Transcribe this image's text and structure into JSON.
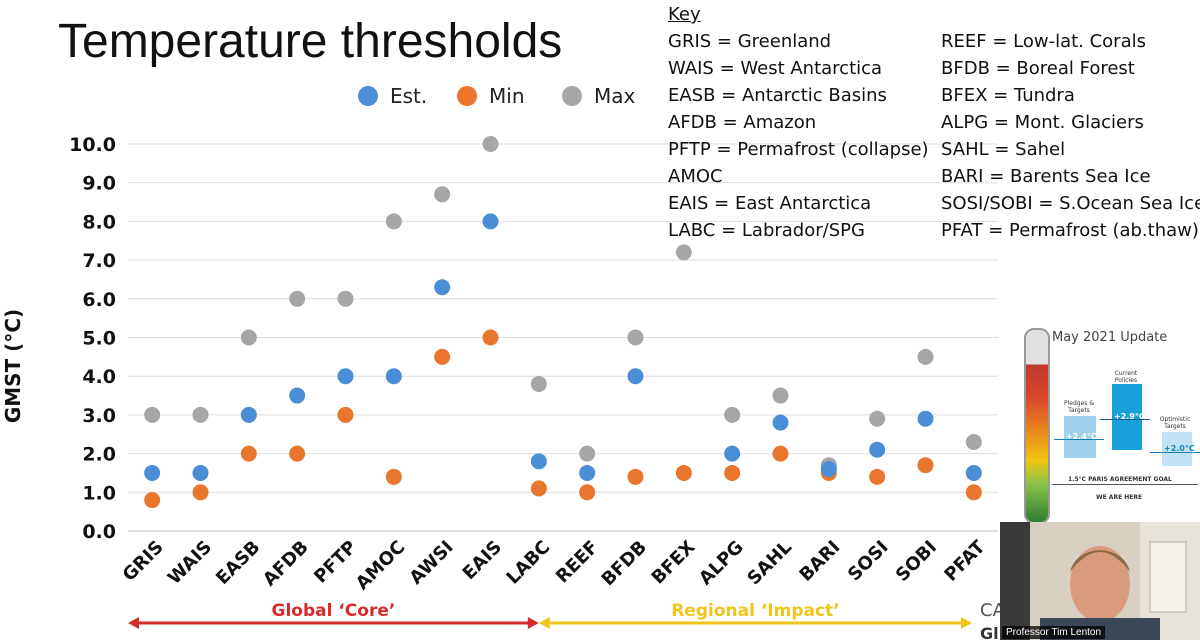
{
  "slide": {
    "title": "Temperature thresholds"
  },
  "key": {
    "heading": "Key",
    "col1": [
      "GRIS = Greenland",
      "WAIS = West Antarctica",
      "EASB = Antarctic Basins",
      "AFDB = Amazon",
      "PFTP = Permafrost (collapse)",
      "AMOC",
      "EAIS = East Antarctica",
      "LABC = Labrador/SPG"
    ],
    "col2": [
      "REEF = Low-lat. Corals",
      "BFDB = Boreal Forest",
      "BFEX = Tundra",
      "ALPG = Mont. Glaciers",
      "SAHL = Sahel",
      "BARI = Barents Sea Ice",
      "SOSI/SOBI = S.Ocean Sea Ice",
      "PFAT = Permafrost (ab.thaw)"
    ]
  },
  "chart_data": {
    "type": "scatter",
    "ylabel": "GMST (°C)",
    "ylim": [
      0,
      10
    ],
    "yticks": [
      "0.0",
      "1.0",
      "2.0",
      "3.0",
      "4.0",
      "5.0",
      "6.0",
      "7.0",
      "8.0",
      "9.0",
      "10.0"
    ],
    "grid": true,
    "legend": "top",
    "categories": [
      "GRIS",
      "WAIS",
      "EASB",
      "AFDB",
      "PFTP",
      "AMOC",
      "AWSI",
      "EAIS",
      "LABC",
      "REEF",
      "BFDB",
      "BFEX",
      "ALPG",
      "SAHL",
      "BARI",
      "SOSI",
      "SOBI",
      "PFAT"
    ],
    "series": [
      {
        "name": "Est.",
        "color": "#4a8fd6",
        "values": [
          1.5,
          1.5,
          3.0,
          3.5,
          4.0,
          4.0,
          6.3,
          8.0,
          1.8,
          1.5,
          4.0,
          null,
          2.0,
          2.8,
          1.6,
          2.1,
          2.9,
          1.5
        ]
      },
      {
        "name": "Min",
        "color": "#e8762d",
        "values": [
          0.8,
          1.0,
          2.0,
          2.0,
          3.0,
          1.4,
          4.5,
          5.0,
          1.1,
          1.0,
          1.4,
          1.5,
          1.5,
          2.0,
          1.5,
          1.4,
          1.7,
          1.0
        ]
      },
      {
        "name": "Max",
        "color": "#a6a6a6",
        "values": [
          3.0,
          3.0,
          5.0,
          6.0,
          6.0,
          8.0,
          8.7,
          10.0,
          3.8,
          2.0,
          5.0,
          7.2,
          3.0,
          3.5,
          1.7,
          2.9,
          4.5,
          2.3
        ]
      }
    ],
    "groups": [
      {
        "label": "Global ‘Core’",
        "color": "#d62b2b",
        "from": "GRIS",
        "to": "LABC"
      },
      {
        "label": "Regional ‘Impact’",
        "color": "#f0c419",
        "from": "LABC",
        "to": "PFAT"
      }
    ]
  },
  "inset": {
    "title": "May 2021 Update",
    "bars": [
      {
        "label": "Pledges & Targets",
        "value": "+2.4°C",
        "color": "#9fd0ec"
      },
      {
        "label": "Current Policies",
        "value": "+2.9°C",
        "color": "#1aa0d8"
      },
      {
        "label": "Optimistic Targets",
        "value": "+2.0°C",
        "color": "#bfe2f4"
      }
    ],
    "goal": "1.5°C PARIS AGREEMENT GOAL",
    "here": "WE ARE HERE"
  },
  "webcam": {
    "name": "Professor Tim Lenton"
  },
  "cut_text": {
    "line1": "CA",
    "line2": "Gl"
  }
}
